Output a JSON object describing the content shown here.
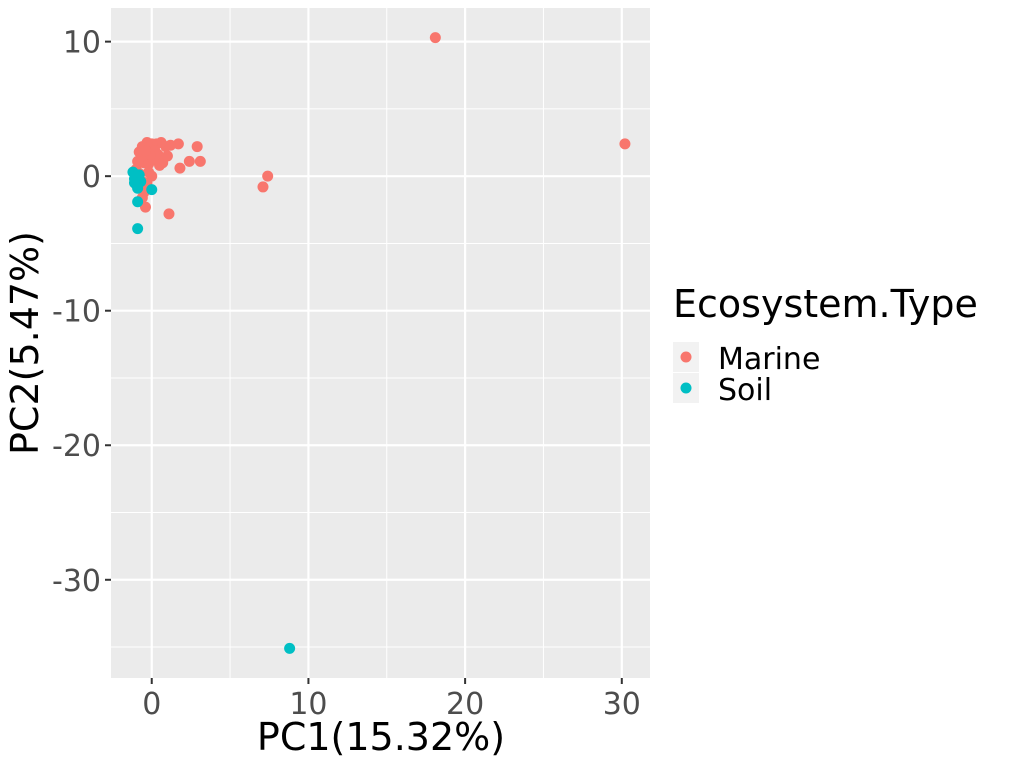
{
  "chart_data": {
    "type": "scatter",
    "xlabel": "PC1(15.32%)",
    "ylabel": "PC2(5.47%)",
    "xlim": [
      -2.6,
      31.8
    ],
    "ylim": [
      -37.3,
      12.5
    ],
    "x_ticks": [
      0,
      10,
      20,
      30
    ],
    "y_ticks": [
      10,
      0,
      -10,
      -20,
      -30
    ],
    "x_tick_labels": [
      "0",
      "10",
      "20",
      "30"
    ],
    "y_tick_labels": [
      "10",
      "0",
      "-10",
      "-20",
      "-30"
    ],
    "grid": true,
    "panel_background": "#ebebeb",
    "legend": {
      "title": "Ecosystem.Type",
      "position": "right",
      "entries": [
        "Marine",
        "Soil"
      ]
    },
    "series": [
      {
        "name": "Marine",
        "color": "#f8766d",
        "points": [
          [
            18.1,
            10.3
          ],
          [
            30.2,
            2.4
          ],
          [
            7.4,
            0.0
          ],
          [
            7.1,
            -0.8
          ],
          [
            1.1,
            -2.8
          ],
          [
            2.9,
            2.2
          ],
          [
            3.1,
            1.1
          ],
          [
            2.4,
            1.1
          ],
          [
            1.8,
            0.6
          ],
          [
            1.7,
            2.4
          ],
          [
            1.2,
            2.3
          ],
          [
            0.9,
            2.2
          ],
          [
            0.6,
            2.5
          ],
          [
            0.3,
            2.4
          ],
          [
            0.0,
            2.4
          ],
          [
            -0.3,
            2.5
          ],
          [
            -0.6,
            2.2
          ],
          [
            -0.8,
            1.8
          ],
          [
            -0.7,
            1.3
          ],
          [
            -0.5,
            1.0
          ],
          [
            -0.2,
            0.9
          ],
          [
            0.1,
            1.2
          ],
          [
            0.4,
            1.6
          ],
          [
            0.7,
            1.0
          ],
          [
            1.0,
            1.5
          ],
          [
            0.2,
            1.9
          ],
          [
            -0.1,
            1.6
          ],
          [
            -0.4,
            1.9
          ],
          [
            -0.9,
            1.1
          ],
          [
            -1.0,
            0.5
          ],
          [
            -0.8,
            0.2
          ],
          [
            -0.6,
            -0.4
          ],
          [
            -0.5,
            -1.2
          ],
          [
            -0.6,
            -1.6
          ],
          [
            -0.4,
            -2.3
          ],
          [
            -0.2,
            0.3
          ],
          [
            0.0,
            0.0
          ],
          [
            -0.7,
            -0.9
          ],
          [
            -0.3,
            -0.5
          ],
          [
            0.5,
            0.8
          ]
        ]
      },
      {
        "name": "Soil",
        "color": "#00bfc4",
        "points": [
          [
            8.8,
            -35.1
          ],
          [
            -0.9,
            -3.9
          ],
          [
            -0.9,
            -1.9
          ],
          [
            0.0,
            -1.0
          ],
          [
            -1.1,
            -0.2
          ],
          [
            -1.0,
            -0.6
          ],
          [
            -0.9,
            -0.9
          ],
          [
            -0.8,
            0.1
          ],
          [
            -1.2,
            0.3
          ],
          [
            -0.7,
            -0.4
          ],
          [
            -1.0,
            0.0
          ],
          [
            -1.1,
            -0.5
          ]
        ]
      }
    ]
  }
}
